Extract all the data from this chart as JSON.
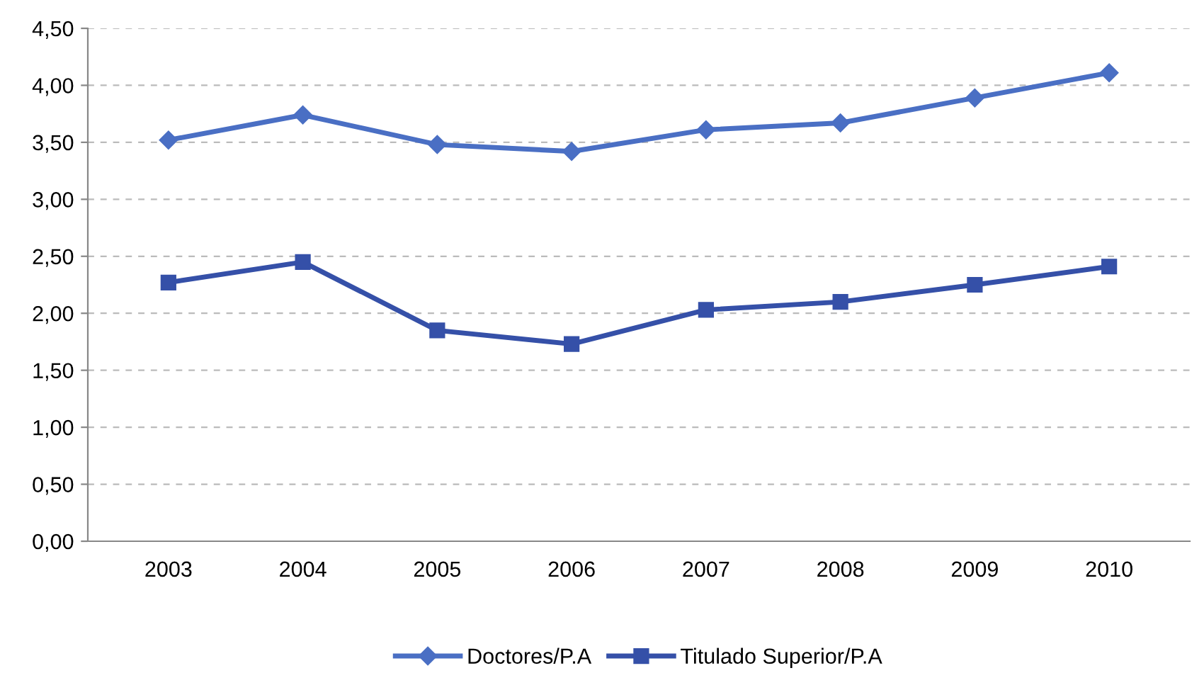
{
  "chart_data": {
    "type": "line",
    "categories": [
      "2003",
      "2004",
      "2005",
      "2006",
      "2007",
      "2008",
      "2009",
      "2010"
    ],
    "series": [
      {
        "name": "Doctores/P.A",
        "color": "#4a6fc4",
        "marker": "diamond",
        "values": [
          3.52,
          3.74,
          3.48,
          3.42,
          3.61,
          3.67,
          3.89,
          4.11
        ]
      },
      {
        "name": "Titulado Superior/P.A",
        "color": "#3550a8",
        "marker": "square",
        "values": [
          2.27,
          2.45,
          1.85,
          1.73,
          2.03,
          2.1,
          2.25,
          2.41
        ]
      }
    ],
    "ylim": [
      0,
      4.5
    ],
    "yticks": [
      {
        "value": 0,
        "label": "0,00"
      },
      {
        "value": 0.5,
        "label": "0,50"
      },
      {
        "value": 1,
        "label": "1,00"
      },
      {
        "value": 1.5,
        "label": "1,50"
      },
      {
        "value": 2,
        "label": "2,00"
      },
      {
        "value": 2.5,
        "label": "2,50"
      },
      {
        "value": 3,
        "label": "3,00"
      },
      {
        "value": 3.5,
        "label": "3,50"
      },
      {
        "value": 4,
        "label": "4,00"
      },
      {
        "value": 4.5,
        "label": "4,50"
      }
    ],
    "grid": "y",
    "legend": "bottom",
    "line_style": "solid"
  }
}
